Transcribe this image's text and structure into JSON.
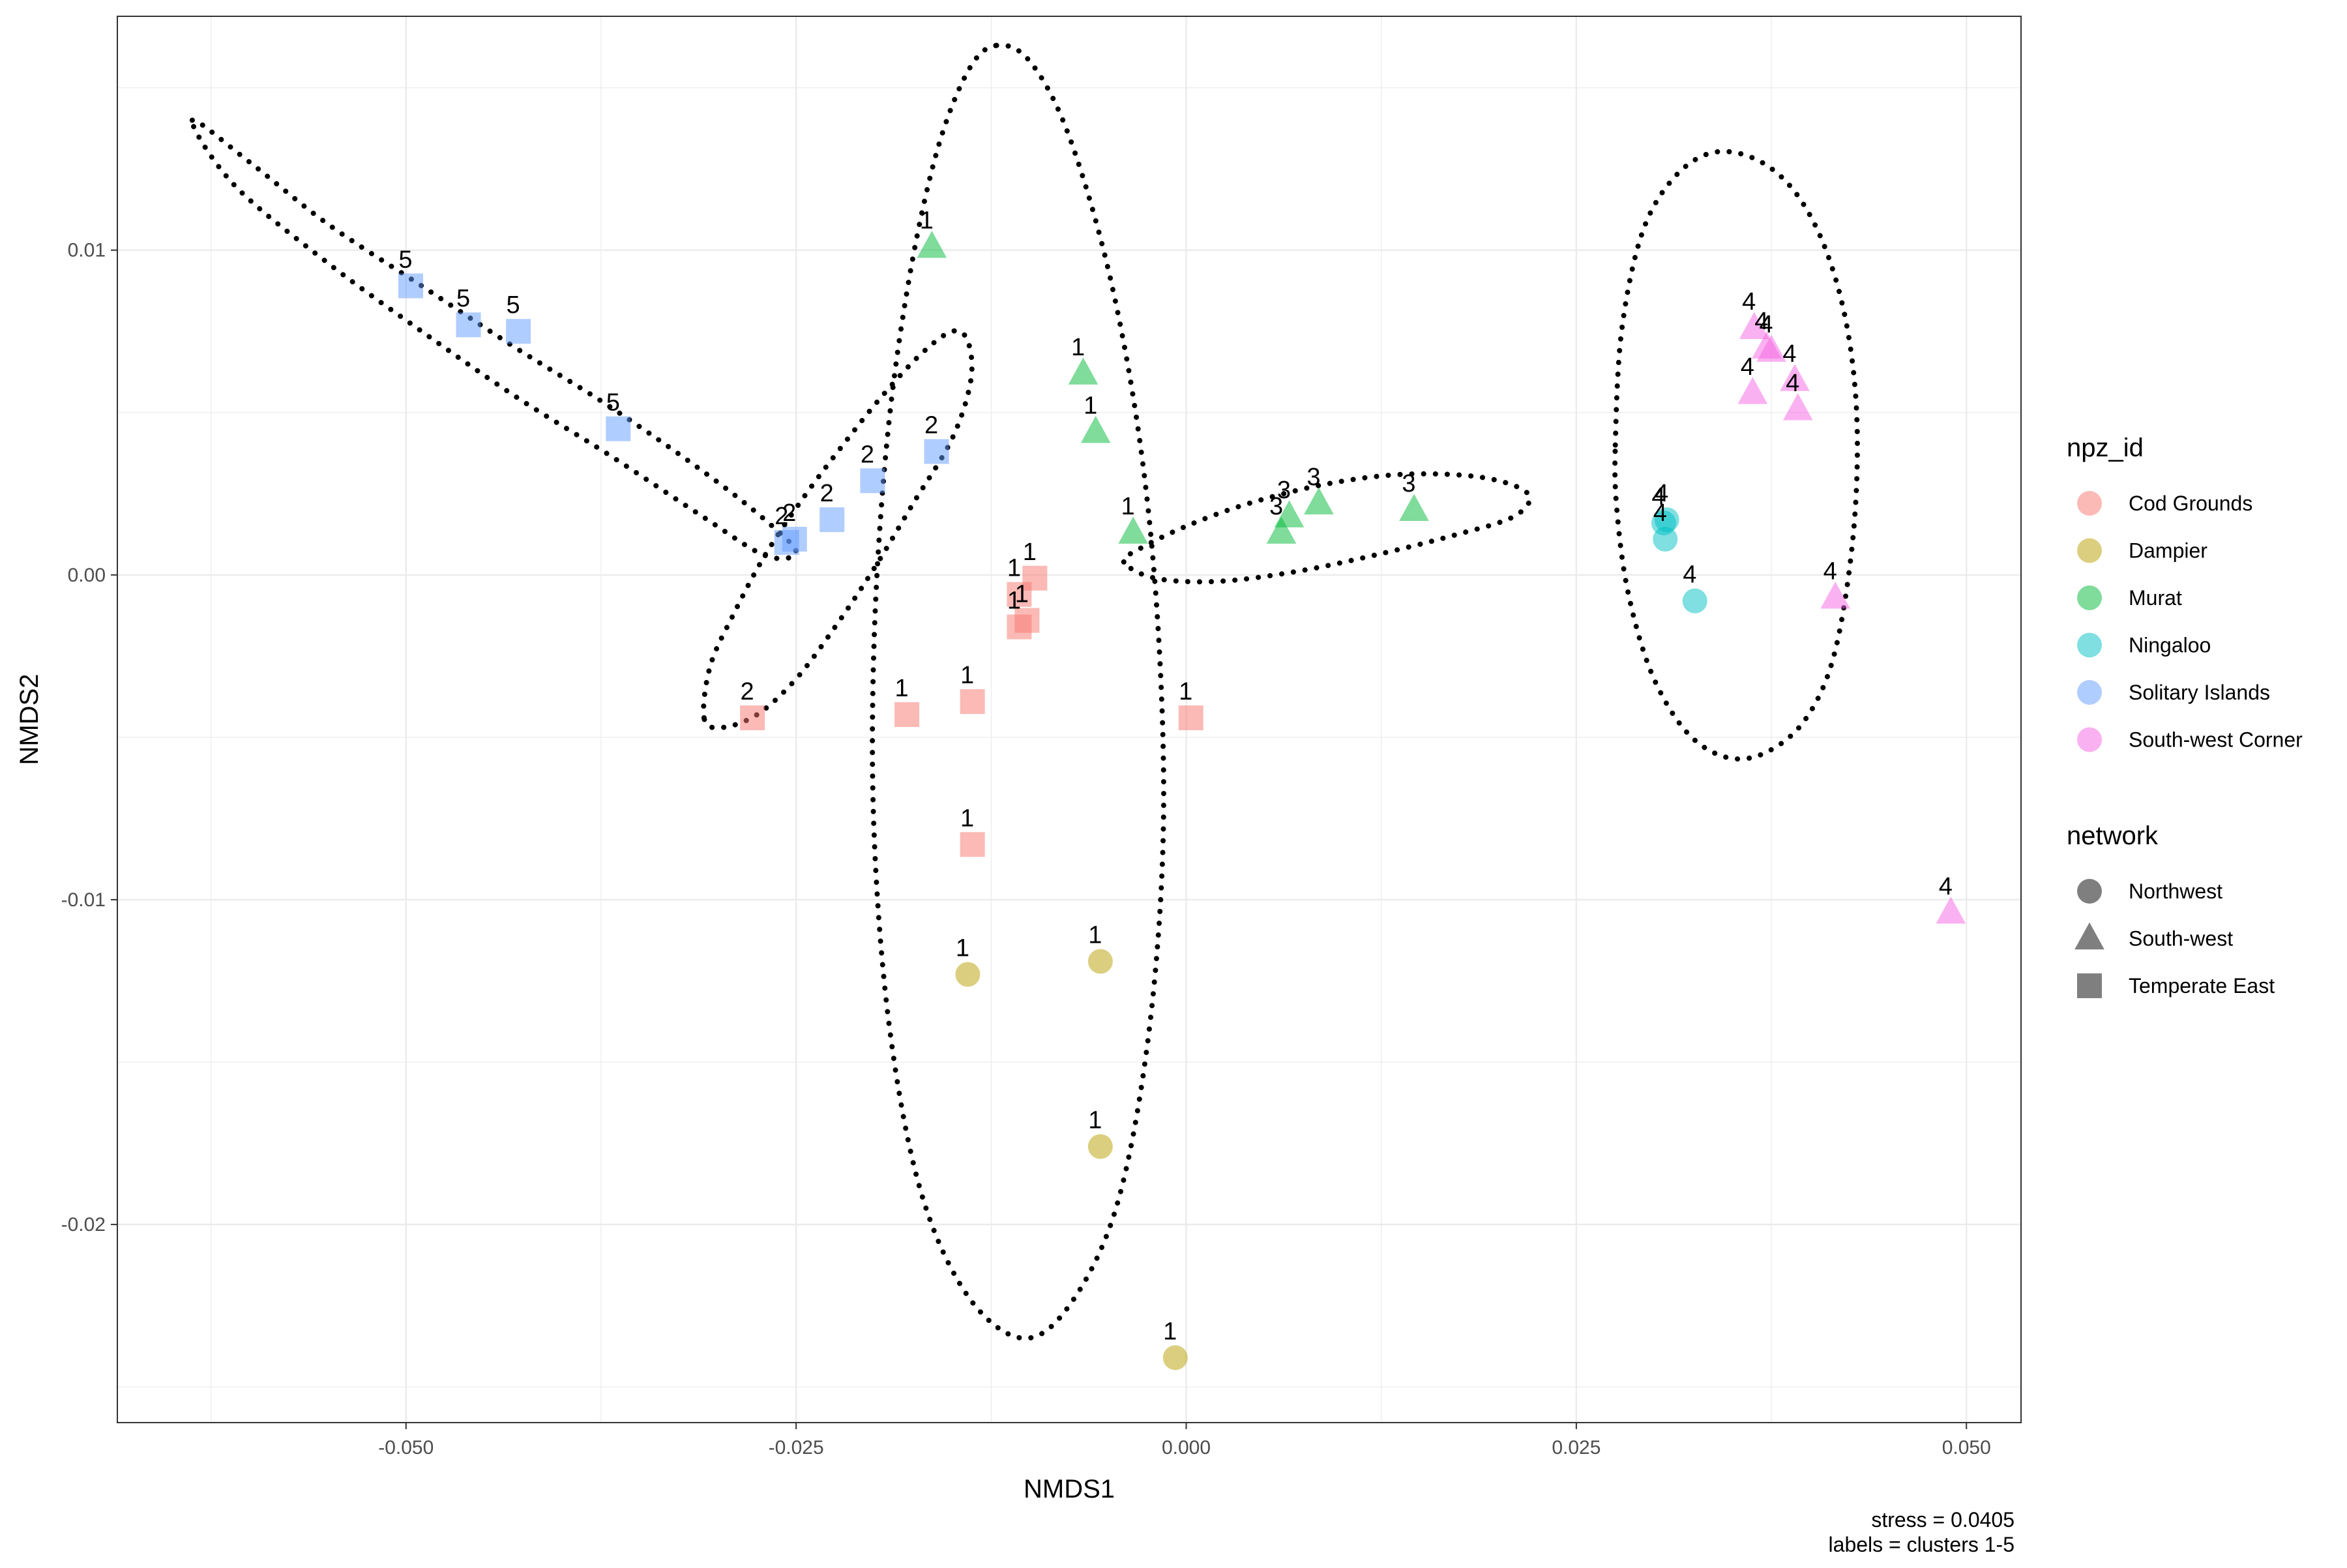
{
  "chart_data": {
    "type": "scatter",
    "xlabel": "NMDS1",
    "ylabel": "NMDS2",
    "xlim": [
      -0.0685,
      0.0535
    ],
    "ylim": [
      -0.0261,
      0.0172
    ],
    "x_ticks": [
      -0.05,
      -0.025,
      0.0,
      0.025,
      0.05
    ],
    "x_tick_labels": [
      "-0.050",
      "-0.025",
      "0.000",
      "0.025",
      "0.050"
    ],
    "y_ticks": [
      -0.02,
      -0.01,
      0.0,
      0.01
    ],
    "y_tick_labels": [
      "-0.02",
      "-0.01",
      "0.00",
      "0.01"
    ],
    "grid": true,
    "legend_placement": "right",
    "legends": {
      "npz_id": {
        "title": "npz_id",
        "entries": [
          {
            "label": "Cod Grounds",
            "color": "#F8766D"
          },
          {
            "label": "Dampier",
            "color": "#B79F00"
          },
          {
            "label": "Murat",
            "color": "#00BA38"
          },
          {
            "label": "Ningaloo",
            "color": "#00BFC4"
          },
          {
            "label": "Solitary Islands",
            "color": "#619CFF"
          },
          {
            "label": "South-west Corner",
            "color": "#F564E3"
          }
        ]
      },
      "network": {
        "title": "network",
        "entries": [
          {
            "label": "Northwest",
            "shape": "circle"
          },
          {
            "label": "South-west",
            "shape": "triangle"
          },
          {
            "label": "Temperate East",
            "shape": "square"
          }
        ]
      }
    },
    "points": [
      {
        "npz": "Solitary Islands",
        "network": "Temperate East",
        "x": -0.0497,
        "y": 0.0089,
        "cluster": "5"
      },
      {
        "npz": "Solitary Islands",
        "network": "Temperate East",
        "x": -0.046,
        "y": 0.0077,
        "cluster": "5"
      },
      {
        "npz": "Solitary Islands",
        "network": "Temperate East",
        "x": -0.0428,
        "y": 0.0075,
        "cluster": "5"
      },
      {
        "npz": "Solitary Islands",
        "network": "Temperate East",
        "x": -0.0364,
        "y": 0.0045,
        "cluster": "5"
      },
      {
        "npz": "Solitary Islands",
        "network": "Temperate East",
        "x": -0.0251,
        "y": 0.0011,
        "cluster": "2"
      },
      {
        "npz": "Solitary Islands",
        "network": "Temperate East",
        "x": -0.0256,
        "y": 0.001,
        "cluster": "2"
      },
      {
        "npz": "Solitary Islands",
        "network": "Temperate East",
        "x": -0.0227,
        "y": 0.0017,
        "cluster": "2"
      },
      {
        "npz": "Solitary Islands",
        "network": "Temperate East",
        "x": -0.0201,
        "y": 0.0029,
        "cluster": "2"
      },
      {
        "npz": "Solitary Islands",
        "network": "Temperate East",
        "x": -0.016,
        "y": 0.0038,
        "cluster": "2"
      },
      {
        "npz": "Cod Grounds",
        "network": "Temperate East",
        "x": -0.0278,
        "y": -0.0044,
        "cluster": "2"
      },
      {
        "npz": "Cod Grounds",
        "network": "Temperate East",
        "x": -0.0179,
        "y": -0.0043,
        "cluster": "1"
      },
      {
        "npz": "Cod Grounds",
        "network": "Temperate East",
        "x": -0.0137,
        "y": -0.0039,
        "cluster": "1"
      },
      {
        "npz": "Cod Grounds",
        "network": "Temperate East",
        "x": -0.0137,
        "y": -0.0083,
        "cluster": "1"
      },
      {
        "npz": "Cod Grounds",
        "network": "Temperate East",
        "x": -0.0107,
        "y": -0.0006,
        "cluster": "1"
      },
      {
        "npz": "Cod Grounds",
        "network": "Temperate East",
        "x": -0.0097,
        "y": -0.0001,
        "cluster": "1"
      },
      {
        "npz": "Cod Grounds",
        "network": "Temperate East",
        "x": -0.0107,
        "y": -0.0016,
        "cluster": "1"
      },
      {
        "npz": "Cod Grounds",
        "network": "Temperate East",
        "x": -0.0102,
        "y": -0.0014,
        "cluster": "1"
      },
      {
        "npz": "Cod Grounds",
        "network": "Temperate East",
        "x": 0.0003,
        "y": -0.0044,
        "cluster": "1"
      },
      {
        "npz": "Dampier",
        "network": "Northwest",
        "x": -0.014,
        "y": -0.0123,
        "cluster": "1"
      },
      {
        "npz": "Dampier",
        "network": "Northwest",
        "x": -0.0055,
        "y": -0.0119,
        "cluster": "1"
      },
      {
        "npz": "Dampier",
        "network": "Northwest",
        "x": -0.0055,
        "y": -0.0176,
        "cluster": "1"
      },
      {
        "npz": "Dampier",
        "network": "Northwest",
        "x": -0.0007,
        "y": -0.0241,
        "cluster": "1"
      },
      {
        "npz": "Murat",
        "network": "South-west",
        "x": -0.0163,
        "y": 0.0101,
        "cluster": "1"
      },
      {
        "npz": "Murat",
        "network": "South-west",
        "x": -0.0066,
        "y": 0.0062,
        "cluster": "1"
      },
      {
        "npz": "Murat",
        "network": "South-west",
        "x": -0.0058,
        "y": 0.0044,
        "cluster": "1"
      },
      {
        "npz": "Murat",
        "network": "South-west",
        "x": -0.0034,
        "y": 0.0013,
        "cluster": "1"
      },
      {
        "npz": "Murat",
        "network": "South-west",
        "x": 0.0061,
        "y": 0.0013,
        "cluster": "3"
      },
      {
        "npz": "Murat",
        "network": "South-west",
        "x": 0.0066,
        "y": 0.0018,
        "cluster": "3"
      },
      {
        "npz": "Murat",
        "network": "South-west",
        "x": 0.0085,
        "y": 0.0022,
        "cluster": "3"
      },
      {
        "npz": "Murat",
        "network": "South-west",
        "x": 0.0146,
        "y": 0.002,
        "cluster": "3"
      },
      {
        "npz": "Ningaloo",
        "network": "Northwest",
        "x": 0.0308,
        "y": 0.0017,
        "cluster": "4"
      },
      {
        "npz": "Ningaloo",
        "network": "Northwest",
        "x": 0.0306,
        "y": 0.0016,
        "cluster": "4"
      },
      {
        "npz": "Ningaloo",
        "network": "Northwest",
        "x": 0.0307,
        "y": 0.0011,
        "cluster": "4"
      },
      {
        "npz": "Ningaloo",
        "network": "Northwest",
        "x": 0.0326,
        "y": -0.0008,
        "cluster": "4"
      },
      {
        "npz": "South-west Corner",
        "network": "South-west",
        "x": 0.0364,
        "y": 0.0076,
        "cluster": "4"
      },
      {
        "npz": "South-west Corner",
        "network": "South-west",
        "x": 0.0372,
        "y": 0.007,
        "cluster": "4"
      },
      {
        "npz": "South-west Corner",
        "network": "South-west",
        "x": 0.0375,
        "y": 0.0069,
        "cluster": "4"
      },
      {
        "npz": "South-west Corner",
        "network": "South-west",
        "x": 0.039,
        "y": 0.006,
        "cluster": "4"
      },
      {
        "npz": "South-west Corner",
        "network": "South-west",
        "x": 0.0363,
        "y": 0.0056,
        "cluster": "4"
      },
      {
        "npz": "South-west Corner",
        "network": "South-west",
        "x": 0.0392,
        "y": 0.0051,
        "cluster": "4"
      },
      {
        "npz": "South-west Corner",
        "network": "South-west",
        "x": 0.0416,
        "y": -0.0007,
        "cluster": "4"
      },
      {
        "npz": "South-west Corner",
        "network": "South-west",
        "x": 0.049,
        "y": -0.0104,
        "cluster": "4"
      }
    ],
    "ellipses": [
      {
        "cluster": "5",
        "path": [
          [
            -0.0637,
            0.014
          ],
          [
            -0.06,
            0.0127
          ],
          [
            -0.055,
            0.0108
          ],
          [
            -0.049,
            0.0089
          ],
          [
            -0.043,
            0.007
          ],
          [
            -0.037,
            0.0052
          ],
          [
            -0.031,
            0.0032
          ],
          [
            -0.027,
            0.0017
          ],
          [
            -0.025,
            0.0007
          ],
          [
            -0.027,
            0.0006
          ],
          [
            -0.031,
            0.0018
          ],
          [
            -0.037,
            0.0037
          ],
          [
            -0.043,
            0.0055
          ],
          [
            -0.049,
            0.0075
          ],
          [
            -0.055,
            0.0096
          ],
          [
            -0.061,
            0.012
          ],
          [
            -0.0637,
            0.014
          ]
        ]
      },
      {
        "cluster": "2",
        "path": [
          [
            -0.0309,
            -0.0044
          ],
          [
            -0.0305,
            -0.0028
          ],
          [
            -0.029,
            -0.0012
          ],
          [
            -0.027,
            0.0006
          ],
          [
            -0.0245,
            0.0024
          ],
          [
            -0.022,
            0.004
          ],
          [
            -0.0195,
            0.0055
          ],
          [
            -0.017,
            0.0068
          ],
          [
            -0.015,
            0.0075
          ],
          [
            -0.014,
            0.0072
          ],
          [
            -0.0138,
            0.006
          ],
          [
            -0.015,
            0.0042
          ],
          [
            -0.0175,
            0.0022
          ],
          [
            -0.02,
            0.0002
          ],
          [
            -0.0225,
            -0.0016
          ],
          [
            -0.025,
            -0.0032
          ],
          [
            -0.0275,
            -0.0043
          ],
          [
            -0.0298,
            -0.0047
          ],
          [
            -0.0309,
            -0.0044
          ]
        ]
      },
      {
        "cluster": "1",
        "path": [
          [
            -0.0122,
            0.0163
          ],
          [
            -0.014,
            0.0155
          ],
          [
            -0.016,
            0.013
          ],
          [
            -0.0178,
            0.009
          ],
          [
            -0.0192,
            0.004
          ],
          [
            -0.02,
            -0.002
          ],
          [
            -0.02,
            -0.008
          ],
          [
            -0.019,
            -0.014
          ],
          [
            -0.017,
            -0.019
          ],
          [
            -0.014,
            -0.0222
          ],
          [
            -0.0105,
            -0.0235
          ],
          [
            -0.0075,
            -0.0225
          ],
          [
            -0.0045,
            -0.0195
          ],
          [
            -0.0025,
            -0.0145
          ],
          [
            -0.0015,
            -0.0085
          ],
          [
            -0.0017,
            -0.0025
          ],
          [
            -0.0028,
            0.0035
          ],
          [
            -0.0048,
            0.009
          ],
          [
            -0.0075,
            0.0135
          ],
          [
            -0.01,
            0.0158
          ],
          [
            -0.0122,
            0.0163
          ]
        ]
      },
      {
        "cluster": "3",
        "path": [
          [
            -0.004,
            0.0004
          ],
          [
            -0.003,
            0.0008
          ],
          [
            0.0,
            0.0015
          ],
          [
            0.004,
            0.0022
          ],
          [
            0.009,
            0.0028
          ],
          [
            0.014,
            0.0031
          ],
          [
            0.019,
            0.003
          ],
          [
            0.0219,
            0.0025
          ],
          [
            0.021,
            0.0018
          ],
          [
            0.017,
            0.0012
          ],
          [
            0.012,
            0.0006
          ],
          [
            0.007,
            0.0001
          ],
          [
            0.002,
            -0.0002
          ],
          [
            -0.002,
            -0.0001
          ],
          [
            -0.004,
            0.0004
          ]
        ]
      },
      {
        "cluster": "4",
        "path": [
          [
            0.0275,
            0.004
          ],
          [
            0.0279,
            0.0075
          ],
          [
            0.0292,
            0.0105
          ],
          [
            0.0312,
            0.0122
          ],
          [
            0.0337,
            0.013
          ],
          [
            0.0365,
            0.0128
          ],
          [
            0.039,
            0.0118
          ],
          [
            0.041,
            0.01
          ],
          [
            0.0424,
            0.0075
          ],
          [
            0.043,
            0.0045
          ],
          [
            0.0427,
            0.001
          ],
          [
            0.0415,
            -0.0025
          ],
          [
            0.0396,
            -0.0045
          ],
          [
            0.037,
            -0.0055
          ],
          [
            0.0345,
            -0.0056
          ],
          [
            0.032,
            -0.0048
          ],
          [
            0.0298,
            -0.003
          ],
          [
            0.0283,
            -0.0005
          ],
          [
            0.0276,
            0.002
          ],
          [
            0.0275,
            0.004
          ]
        ]
      }
    ],
    "caption_lines": [
      "stress = 0.0405",
      "labels = clusters 1-5"
    ]
  }
}
